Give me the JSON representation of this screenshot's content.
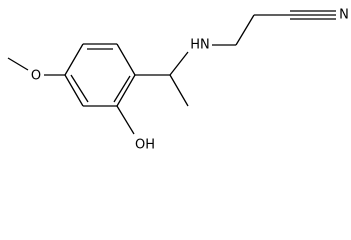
{
  "atoms": [
    {
      "label": "O"
    },
    {
      "label": "OH"
    },
    {
      "label": "HN"
    },
    {
      "label": "N"
    }
  ]
}
